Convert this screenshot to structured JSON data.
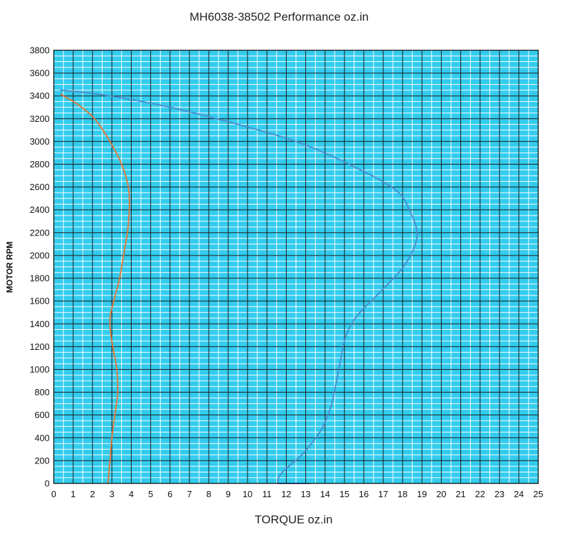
{
  "chart_data": {
    "type": "line",
    "title": "MH6038-38502  Performance oz.in",
    "xlabel": "TORQUE  oz.in",
    "ylabel": "MOTOR RPM",
    "xlim": [
      0,
      25
    ],
    "ylim": [
      0,
      3800
    ],
    "x_ticks": [
      "0",
      "1",
      "2",
      "3",
      "4",
      "5",
      "6",
      "7",
      "8",
      "9",
      "10",
      "11",
      "12",
      "13",
      "14",
      "15",
      "16",
      "17",
      "18",
      "19",
      "20",
      "21",
      "22",
      "23",
      "24",
      "25"
    ],
    "y_ticks": [
      "0",
      "200",
      "400",
      "600",
      "800",
      "1000",
      "1200",
      "1400",
      "1600",
      "1800",
      "2000",
      "2200",
      "2400",
      "2600",
      "2800",
      "3000",
      "3200",
      "3400",
      "3600",
      "3800"
    ],
    "grid": true,
    "background_color": "#33ccee",
    "series": [
      {
        "name": "blue-curve",
        "color": "#4a8fd0",
        "points": [
          [
            11.6,
            0
          ],
          [
            11.55,
            20
          ],
          [
            11.7,
            80
          ],
          [
            12.2,
            160
          ],
          [
            12.8,
            250
          ],
          [
            13.3,
            350
          ],
          [
            13.8,
            470
          ],
          [
            14.1,
            580
          ],
          [
            14.35,
            700
          ],
          [
            14.5,
            820
          ],
          [
            14.65,
            950
          ],
          [
            14.8,
            1080
          ],
          [
            15.0,
            1250
          ],
          [
            15.3,
            1380
          ],
          [
            15.8,
            1500
          ],
          [
            16.5,
            1620
          ],
          [
            17.3,
            1760
          ],
          [
            18.0,
            1890
          ],
          [
            18.55,
            2050
          ],
          [
            18.75,
            2200
          ],
          [
            18.4,
            2380
          ],
          [
            17.6,
            2580
          ],
          [
            15.0,
            2820
          ],
          [
            12.5,
            3000
          ],
          [
            9.5,
            3150
          ],
          [
            6.0,
            3300
          ],
          [
            2.5,
            3410
          ],
          [
            0.35,
            3450
          ]
        ]
      },
      {
        "name": "orange-curve",
        "color": "#e07a3c",
        "points": [
          [
            2.8,
            0
          ],
          [
            2.9,
            200
          ],
          [
            3.0,
            400
          ],
          [
            3.15,
            600
          ],
          [
            3.3,
            800
          ],
          [
            3.25,
            1000
          ],
          [
            3.1,
            1150
          ],
          [
            2.95,
            1300
          ],
          [
            2.9,
            1450
          ],
          [
            3.1,
            1600
          ],
          [
            3.4,
            1800
          ],
          [
            3.6,
            2000
          ],
          [
            3.8,
            2200
          ],
          [
            3.9,
            2400
          ],
          [
            3.85,
            2600
          ],
          [
            3.5,
            2800
          ],
          [
            2.9,
            3000
          ],
          [
            2.1,
            3200
          ],
          [
            1.2,
            3330
          ],
          [
            0.5,
            3400
          ],
          [
            0.4,
            3420
          ]
        ]
      },
      {
        "name": "blue-tail",
        "color": "#4a8fd0",
        "points": [
          [
            11.6,
            0
          ],
          [
            12.4,
            0
          ],
          [
            13.2,
            0
          ]
        ]
      }
    ]
  }
}
